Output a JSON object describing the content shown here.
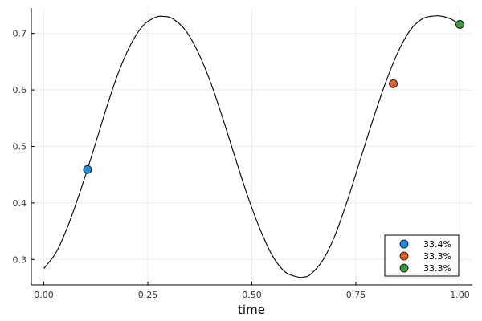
{
  "chart_data": {
    "type": "line",
    "title": "",
    "xlabel": "time",
    "ylabel": "",
    "xlim": [
      -0.03,
      1.03
    ],
    "ylim": [
      0.255,
      0.745
    ],
    "x_ticks": [
      0.0,
      0.25,
      0.5,
      0.75,
      1.0
    ],
    "x_tick_labels": [
      "0.00",
      "0.25",
      "0.50",
      "0.75",
      "1.00"
    ],
    "y_ticks": [
      0.3,
      0.4,
      0.5,
      0.6,
      0.7
    ],
    "y_tick_labels": [
      "0.3",
      "0.4",
      "0.5",
      "0.6",
      "0.7"
    ],
    "grid": true,
    "curve": {
      "color": "#000000",
      "x": [
        0.0,
        0.03,
        0.06,
        0.09,
        0.12,
        0.15,
        0.18,
        0.21,
        0.24,
        0.27,
        0.29,
        0.31,
        0.34,
        0.37,
        0.4,
        0.43,
        0.46,
        0.49,
        0.52,
        0.55,
        0.58,
        0.61,
        0.625,
        0.64,
        0.67,
        0.7,
        0.73,
        0.76,
        0.79,
        0.82,
        0.85,
        0.88,
        0.91,
        0.94,
        0.96,
        0.98,
        1.0
      ],
      "y": [
        0.284,
        0.313,
        0.363,
        0.426,
        0.495,
        0.567,
        0.632,
        0.682,
        0.715,
        0.729,
        0.73,
        0.726,
        0.706,
        0.668,
        0.615,
        0.55,
        0.48,
        0.412,
        0.353,
        0.306,
        0.278,
        0.269,
        0.269,
        0.273,
        0.298,
        0.343,
        0.405,
        0.475,
        0.545,
        0.61,
        0.665,
        0.705,
        0.726,
        0.731,
        0.73,
        0.725,
        0.716
      ]
    },
    "series": [
      {
        "name": "33.4%",
        "color": "#1f8fe0",
        "x": [
          0.105
        ],
        "y": [
          0.459
        ]
      },
      {
        "name": "33.3%",
        "color": "#e0622b",
        "x": [
          0.84
        ],
        "y": [
          0.611
        ]
      },
      {
        "name": "33.3%",
        "color": "#3a9a3d",
        "x": [
          1.0
        ],
        "y": [
          0.716
        ]
      }
    ],
    "legend_position": "bottom-right"
  }
}
